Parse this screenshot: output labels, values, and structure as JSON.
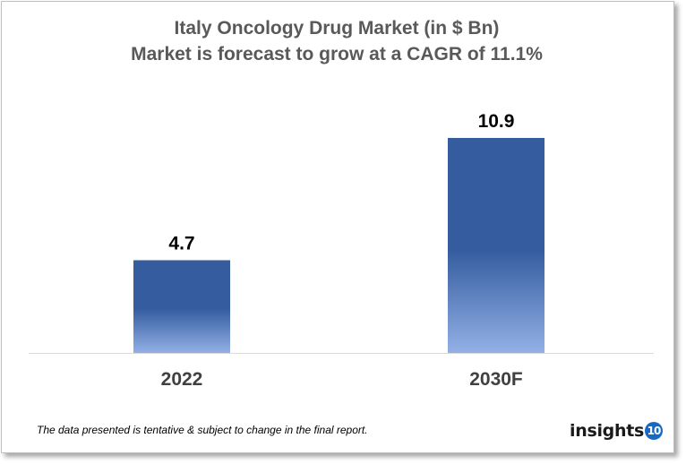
{
  "chart_data": {
    "type": "bar",
    "title": "Italy Oncology Drug Market (in $ Bn)",
    "subtitle": "Market is forecast to grow at a CAGR of 11.1%",
    "categories": [
      "2022",
      "2030F"
    ],
    "values": [
      4.7,
      10.9
    ],
    "data_labels": [
      "4.7",
      "10.9"
    ],
    "xlabel": "",
    "ylabel": "",
    "ylim": [
      0,
      13
    ],
    "grid": false,
    "bar_gradient": {
      "top": "#345C9F",
      "bottom": "#93B0E6"
    }
  },
  "footer": {
    "note": "The data presented is tentative & subject to change in the final report.",
    "logo_text": "insights",
    "logo_badge": "10"
  }
}
